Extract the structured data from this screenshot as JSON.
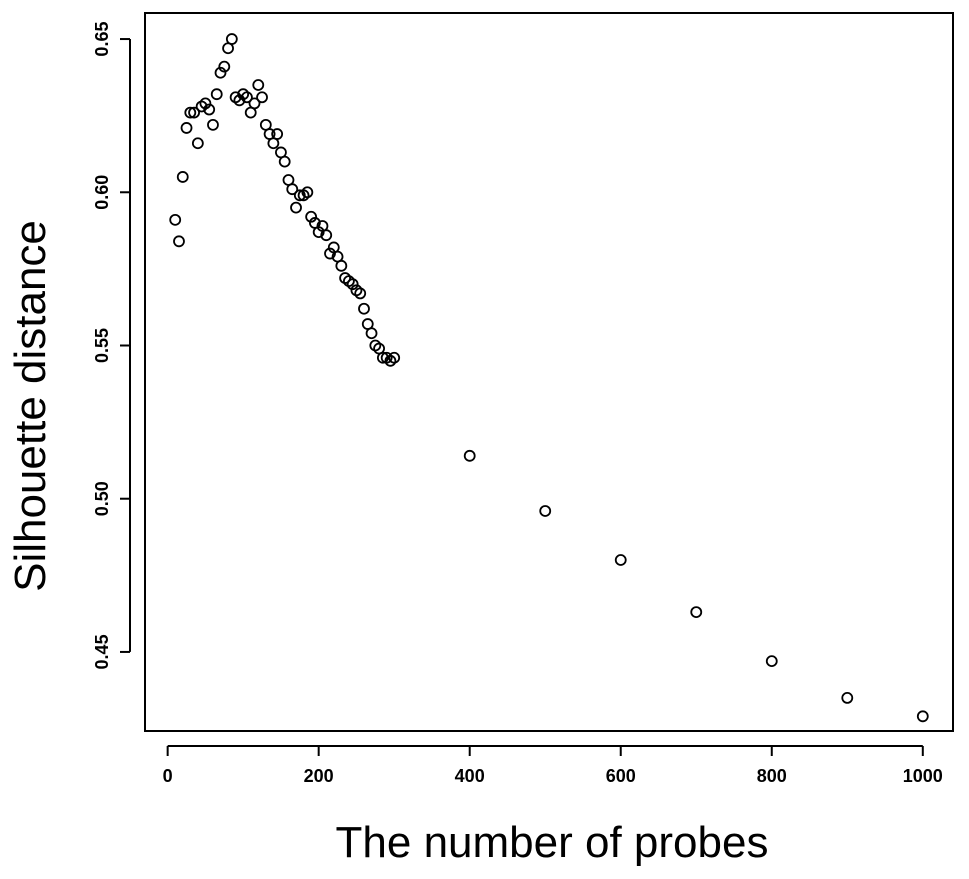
{
  "chart_data": {
    "type": "scatter",
    "title": "",
    "xlabel": "The number of probes",
    "ylabel": "Silhouette distance",
    "xlim": [
      -30,
      1040
    ],
    "ylim": [
      0.4242,
      0.6585
    ],
    "x_ticks": [
      0,
      200,
      400,
      600,
      800,
      1000
    ],
    "x_tick_labels": [
      "0",
      "200",
      "400",
      "600",
      "800",
      "1000"
    ],
    "y_ticks": [
      0.45,
      0.5,
      0.55,
      0.6,
      0.65
    ],
    "y_tick_labels": [
      "0.45",
      "0.50",
      "0.55",
      "0.60",
      "0.65"
    ],
    "grid": false,
    "legend": "none",
    "marker": "open-circle",
    "series": [
      {
        "x": [
          10,
          15,
          20,
          25,
          30,
          35,
          40,
          45,
          50,
          55,
          60,
          65,
          70,
          75,
          80,
          85,
          90,
          95,
          100,
          105,
          110,
          115,
          120,
          125,
          130,
          135,
          140,
          145,
          150,
          155,
          160,
          165,
          170,
          175,
          180,
          185,
          190,
          195,
          200,
          205,
          210,
          215,
          220,
          225,
          230,
          235,
          240,
          245,
          250,
          255,
          260,
          265,
          270,
          275,
          280,
          285,
          290,
          295,
          300,
          400,
          500,
          600,
          700,
          800,
          900,
          1000
        ],
        "y": [
          0.591,
          0.584,
          0.605,
          0.621,
          0.626,
          0.626,
          0.616,
          0.628,
          0.629,
          0.627,
          0.622,
          0.632,
          0.639,
          0.641,
          0.647,
          0.65,
          0.631,
          0.63,
          0.632,
          0.631,
          0.626,
          0.629,
          0.635,
          0.631,
          0.622,
          0.619,
          0.616,
          0.619,
          0.613,
          0.61,
          0.604,
          0.601,
          0.595,
          0.599,
          0.599,
          0.6,
          0.592,
          0.59,
          0.587,
          0.589,
          0.586,
          0.58,
          0.582,
          0.579,
          0.576,
          0.572,
          0.571,
          0.57,
          0.568,
          0.567,
          0.562,
          0.557,
          0.554,
          0.55,
          0.549,
          0.546,
          0.546,
          0.545,
          0.546,
          0.514,
          0.496,
          0.48,
          0.463,
          0.447,
          0.435,
          0.429
        ]
      }
    ]
  }
}
